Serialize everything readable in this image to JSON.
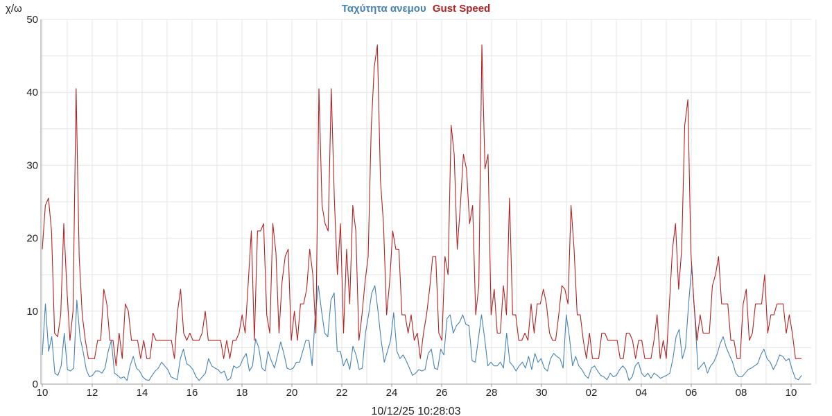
{
  "chart_data": {
    "type": "line",
    "title_parts": [
      {
        "text": "Ταχύτητα ανεμου",
        "color": "#4682b4"
      },
      {
        "text": "Gust Speed",
        "color": "#b22222"
      }
    ],
    "ylabel": "χ/ω",
    "footer": "10/12/25 10:28:03",
    "ylim": [
      0,
      50
    ],
    "yticks": [
      0,
      10,
      20,
      30,
      40,
      50
    ],
    "grid": true,
    "x_tick_labels": [
      "10",
      "12",
      "14",
      "16",
      "18",
      "20",
      "22",
      "24",
      "26",
      "28",
      "30",
      "02",
      "04",
      "06",
      "08",
      "10"
    ],
    "x_tick_days": [
      0,
      2,
      4,
      6,
      8,
      10,
      12,
      14,
      16,
      18,
      20,
      22,
      24,
      26,
      28,
      30
    ],
    "x_range_days": [
      0,
      31.2
    ],
    "series": [
      {
        "name": "Ταχύτητα ανεμου",
        "color": "#4682b4",
        "values": [
          4,
          11,
          4.5,
          6.5,
          1.5,
          1.2,
          2.5,
          7,
          2,
          1.8,
          2.2,
          11.5,
          6.5,
          4.5,
          2,
          1,
          1.2,
          1.8,
          1.8,
          1.5,
          2.2,
          4.5,
          6,
          1.5,
          1.2,
          0.8,
          1,
          0.5,
          2.5,
          3.8,
          2.2,
          1.8,
          1,
          0.6,
          0.5,
          1.2,
          1.8,
          2.2,
          3,
          2.5,
          2,
          1,
          0.8,
          0.6,
          3.5,
          4.8,
          2.8,
          2.5,
          2,
          1,
          0.5,
          1,
          1.5,
          3.5,
          2.5,
          2.2,
          2,
          1.5,
          1.8,
          0.5,
          0.8,
          2.5,
          2.2,
          2.5,
          3.5,
          4.2,
          1.8,
          2.5,
          6.2,
          5,
          2.2,
          1.8,
          4.5,
          3.2,
          2.2,
          4,
          5.8,
          4.2,
          2.2,
          2,
          2.2,
          3,
          3,
          4.5,
          6,
          6,
          2.5,
          9.5,
          13.5,
          10,
          7,
          6.5,
          11.5,
          12.5,
          4.5,
          4.5,
          2.5,
          3.5,
          2,
          5.2,
          4,
          2,
          2.2,
          7,
          9.5,
          12.5,
          13.5,
          10,
          6,
          3,
          4.5,
          6,
          9.8,
          4.5,
          3.5,
          4,
          3.2,
          2.2,
          1.2,
          1.5,
          2,
          1.8,
          2,
          4.2,
          4.8,
          2.2,
          2,
          4.8,
          4,
          9,
          9.5,
          7,
          8,
          8.5,
          9.5,
          8.2,
          8,
          3.2,
          3,
          6.2,
          9.5,
          6.2,
          2.5,
          3,
          2.5,
          2.5,
          3,
          2.2,
          7,
          3,
          2.5,
          1.8,
          2.5,
          3,
          2.2,
          3.8,
          2,
          4.2,
          3,
          3.5,
          2.2,
          1.8,
          3.5,
          4.2,
          3.8,
          3.5,
          2.2,
          9.5,
          6.5,
          2.5,
          3.8,
          2.5,
          2,
          1.2,
          0.8,
          2.2,
          2.5,
          1.8,
          1.2,
          1,
          0.6,
          1.5,
          1,
          1.2,
          2,
          2.5,
          2,
          0.5,
          1,
          2.5,
          3,
          1.5,
          1,
          1.5,
          0.8,
          1.5,
          1.2,
          0.8,
          1,
          1.2,
          1.5,
          3.5,
          6.5,
          7.5,
          3.5,
          5,
          11,
          16.2,
          9,
          2,
          2.5,
          3,
          1.5,
          2.5,
          3,
          4,
          5.5,
          6.5,
          5,
          4,
          3,
          1.5,
          1,
          1,
          1.5,
          2,
          2.2,
          2.5,
          2.8,
          4,
          4.8,
          3.5,
          3,
          2,
          2.8,
          4,
          3.8,
          3.2,
          3.5,
          2,
          0.8,
          0.6,
          1.2
        ]
      },
      {
        "name": "Gust Speed",
        "color": "#b22222",
        "values": [
          18.5,
          24.5,
          25.5,
          21,
          7,
          6.5,
          9.5,
          22,
          13,
          6,
          10,
          40.5,
          17.5,
          9.5,
          6,
          3.5,
          3.5,
          3.5,
          6,
          6,
          13,
          11,
          6,
          6,
          2.5,
          7,
          3.5,
          11,
          10,
          6,
          6,
          6,
          3.5,
          6,
          3.5,
          3.5,
          7,
          6,
          6,
          6,
          6,
          6,
          6,
          3.5,
          10,
          13,
          7,
          6,
          7,
          6,
          6,
          6,
          7,
          10,
          6,
          6,
          6,
          6,
          6,
          3.5,
          6,
          3.5,
          6,
          6,
          7,
          9.5,
          7,
          14,
          21,
          6,
          21,
          21,
          22,
          9.5,
          7,
          22,
          18,
          7,
          14,
          17.5,
          18.5,
          6,
          10,
          6,
          11,
          11,
          13,
          18.5,
          15,
          7,
          40.5,
          24.5,
          22,
          21,
          40.5,
          25.5,
          15,
          22,
          7,
          18.5,
          11,
          24.5,
          21,
          6,
          9.5,
          14,
          17.5,
          35,
          43.5,
          46.5,
          28,
          22,
          9.5,
          14,
          21,
          18.5,
          18.5,
          9.5,
          9.5,
          7,
          9.5,
          6,
          7,
          3.5,
          7,
          9.5,
          13,
          17.5,
          17.5,
          7,
          6,
          17.5,
          15,
          35.5,
          31.5,
          18.5,
          24.5,
          31.5,
          29.5,
          22,
          24.5,
          9.5,
          13.5,
          46.5,
          29.5,
          31.5,
          9.5,
          13,
          7,
          7,
          13.5,
          9.5,
          25.5,
          9.5,
          9.5,
          6,
          6,
          7,
          6,
          11,
          7,
          11,
          11,
          13,
          11,
          7,
          6,
          6,
          9.5,
          13.5,
          13,
          11,
          24.5,
          18.5,
          9.5,
          9.5,
          6,
          3.5,
          7,
          3.5,
          3.5,
          3.5,
          7,
          7,
          6,
          6,
          6,
          6,
          3.5,
          3.5,
          7,
          7,
          6,
          3.5,
          6,
          6,
          3.5,
          3.5,
          3.5,
          6,
          9.5,
          3.5,
          6,
          3.5,
          11,
          18.5,
          22,
          13,
          18.5,
          35.5,
          39,
          18,
          11,
          6,
          9.5,
          7,
          7,
          7,
          13.5,
          15,
          17.5,
          11,
          11,
          11,
          6,
          6,
          3.5,
          3.5,
          11,
          13,
          6,
          7,
          11,
          11,
          11,
          15,
          7,
          9.5,
          9.5,
          11,
          11,
          11,
          7,
          9.5,
          7,
          3.5,
          3.5,
          3.5
        ]
      }
    ]
  }
}
